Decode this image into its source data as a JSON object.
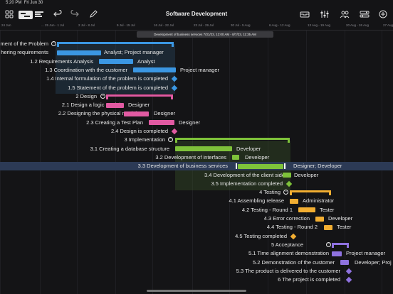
{
  "status": {
    "time": "5:20 PM",
    "date": "Fri Jun 30",
    "right": ""
  },
  "header": {
    "title": "Software Development"
  },
  "colors": {
    "blue": "#3b97e3",
    "pink": "#e15aa2",
    "green": "#7ec23a",
    "orange": "#f2ae32",
    "purple": "#8f72e0"
  },
  "toolbar_icons": [
    "grid-icon",
    "view-toggle-icon",
    "undo-icon",
    "redo-icon",
    "pencil-icon",
    "inbox-icon",
    "sliders-icon",
    "people-icon",
    "settings-icon",
    "plus-icon"
  ],
  "timeline": {
    "ticks": [
      "24 Jun",
      "... 25 Jun - 1 Jul",
      "2 Jul - 8 Jul",
      "9 Jul - 15 Jul",
      "16 Jul - 22 Jul",
      "23 Jul - 29 Jul",
      "30 Jul - 5 Aug",
      "6 Aug - 12 Aug",
      "13 Aug - 19 Aug",
      "20 Aug - 26 Aug",
      "27 Aug - 2 Sep"
    ]
  },
  "tooltip": {
    "text": "Development of business services    7/31/23, 12:00 AM  -  8/7/23, 11:35 AM"
  },
  "rows": [
    {
      "label": "ment of the Problem",
      "resource": ""
    },
    {
      "label": "hering requirements",
      "resource": "Analyst; Project manager"
    },
    {
      "label": "1.2  Requirements Analysis",
      "resource": "Analyst"
    },
    {
      "label": "1.3  Coordination with the customer",
      "resource": "Project manager"
    },
    {
      "label": "1.4  Internal formulation of the problem is completed",
      "resource": ""
    },
    {
      "label": "1.5  Statement of the problem is completed",
      "resource": ""
    },
    {
      "label": "2  Design",
      "resource": ""
    },
    {
      "label": "2.1  Design a logic model",
      "resource": "Designer"
    },
    {
      "label": "2.2  Designing the physical model",
      "resource": "Designer"
    },
    {
      "label": "2.3  Creating a Test Plan",
      "resource": "Designer"
    },
    {
      "label": "2.4  Design is completed",
      "resource": ""
    },
    {
      "label": "3  Implementation",
      "resource": ""
    },
    {
      "label": "3.1  Creating a database structure",
      "resource": "Developer"
    },
    {
      "label": "3.2  Development of interfaces",
      "resource": "Developer"
    },
    {
      "label": "3.3  Development of business services",
      "resource": "Designer; Developer"
    },
    {
      "label": "3.4  Development of the client side",
      "resource": "Developer"
    },
    {
      "label": "3.5  Implementation completed",
      "resource": ""
    },
    {
      "label": "4  Testing",
      "resource": ""
    },
    {
      "label": "4.1  Assembling release",
      "resource": "Administrator"
    },
    {
      "label": "4.2  Testing - Round 1",
      "resource": "Tester"
    },
    {
      "label": "4.3  Error correction",
      "resource": "Developer"
    },
    {
      "label": "4.4  Testing - Round 2",
      "resource": "Tester"
    },
    {
      "label": "4.5  Testing completed",
      "resource": ""
    },
    {
      "label": "5  Acceptance",
      "resource": ""
    },
    {
      "label": "5.1  Time alignment demonstration",
      "resource": "Project manager"
    },
    {
      "label": "5.2  Demonstration of the customer",
      "resource": "Developer; Proj"
    },
    {
      "label": "5.3  The product is delivered to the customer",
      "resource": ""
    },
    {
      "label": "6  The project is completed",
      "resource": ""
    }
  ]
}
